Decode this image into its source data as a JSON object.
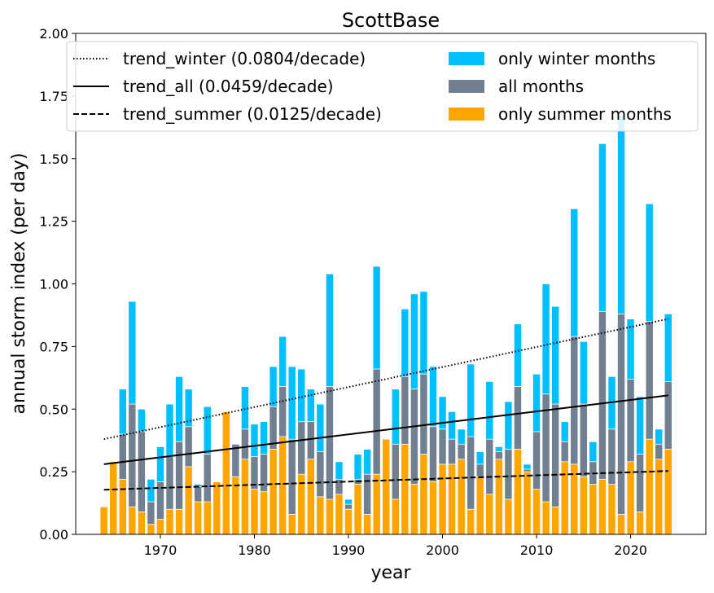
{
  "chart_data": {
    "type": "bar",
    "title": "ScottBase",
    "xlabel": "year",
    "ylabel": "annual storm index (per day)",
    "xlim": [
      1961,
      2028
    ],
    "ylim": [
      0,
      2.0
    ],
    "xticks": [
      "1970",
      "1980",
      "1990",
      "2000",
      "2010",
      "2020"
    ],
    "yticks": [
      "0.00",
      "0.25",
      "0.50",
      "0.75",
      "1.00",
      "1.25",
      "1.50",
      "1.75",
      "2.00"
    ],
    "grid": false,
    "legend_position": "top",
    "colors": {
      "winter": "#00BFFF",
      "all": "#708090",
      "summer": "#FFA500"
    },
    "series": [
      {
        "name": "only winter months",
        "color": "#00BFFF",
        "x": [
          1964,
          1965,
          1966,
          1967,
          1968,
          1969,
          1970,
          1971,
          1972,
          1973,
          1974,
          1975,
          1976,
          1977,
          1978,
          1979,
          1980,
          1981,
          1982,
          1983,
          1984,
          1985,
          1986,
          1987,
          1988,
          1989,
          1990,
          1991,
          1992,
          1993,
          1994,
          1995,
          1996,
          1997,
          1998,
          1999,
          2000,
          2001,
          2002,
          2003,
          2004,
          2005,
          2006,
          2007,
          2008,
          2009,
          2010,
          2011,
          2012,
          2013,
          2014,
          2015,
          2016,
          2017,
          2018,
          2019,
          2020,
          2021,
          2022,
          2023,
          2024
        ],
        "values": [
          0.0,
          0.2,
          0.58,
          0.93,
          0.5,
          0.22,
          0.35,
          0.52,
          0.63,
          0.58,
          0.2,
          0.51,
          0.18,
          0.28,
          0.35,
          0.59,
          0.44,
          0.45,
          0.67,
          0.79,
          0.67,
          0.66,
          0.58,
          0.52,
          1.04,
          0.29,
          0.14,
          0.32,
          0.34,
          1.07,
          0.25,
          0.58,
          0.9,
          0.96,
          0.97,
          0.67,
          0.55,
          0.49,
          0.42,
          0.68,
          0.33,
          0.61,
          0.35,
          0.53,
          0.84,
          0.28,
          0.64,
          1.0,
          0.91,
          0.45,
          1.3,
          0.77,
          0.37,
          1.56,
          0.63,
          1.67,
          0.86,
          0.55,
          1.32,
          0.42,
          0.88
        ]
      },
      {
        "name": "all months",
        "color": "#708090",
        "x": [
          1964,
          1965,
          1966,
          1967,
          1968,
          1969,
          1970,
          1971,
          1972,
          1973,
          1974,
          1975,
          1976,
          1977,
          1978,
          1979,
          1980,
          1981,
          1982,
          1983,
          1984,
          1985,
          1986,
          1987,
          1988,
          1989,
          1990,
          1991,
          1992,
          1993,
          1994,
          1995,
          1996,
          1997,
          1998,
          1999,
          2000,
          2001,
          2002,
          2003,
          2004,
          2005,
          2006,
          2007,
          2008,
          2009,
          2010,
          2011,
          2012,
          2013,
          2014,
          2015,
          2016,
          2017,
          2018,
          2019,
          2020,
          2021,
          2022,
          2023,
          2024
        ],
        "values": [
          0.0,
          0.24,
          0.4,
          0.52,
          0.41,
          0.13,
          0.21,
          0.31,
          0.37,
          0.43,
          0.19,
          0.32,
          0.2,
          0.38,
          0.36,
          0.42,
          0.31,
          0.32,
          0.51,
          0.59,
          0.38,
          0.45,
          0.45,
          0.33,
          0.59,
          0.22,
          0.12,
          0.22,
          0.24,
          0.66,
          0.31,
          0.36,
          0.63,
          0.58,
          0.64,
          0.43,
          0.42,
          0.38,
          0.36,
          0.39,
          0.28,
          0.38,
          0.33,
          0.34,
          0.59,
          0.26,
          0.41,
          0.56,
          0.52,
          0.37,
          0.79,
          0.52,
          0.29,
          0.89,
          0.42,
          0.88,
          0.62,
          0.32,
          0.85,
          0.36,
          0.61
        ]
      },
      {
        "name": "only summer months",
        "color": "#FFA500",
        "x": [
          1964,
          1965,
          1966,
          1967,
          1968,
          1969,
          1970,
          1971,
          1972,
          1973,
          1974,
          1975,
          1976,
          1977,
          1978,
          1979,
          1980,
          1981,
          1982,
          1983,
          1984,
          1985,
          1986,
          1987,
          1988,
          1989,
          1990,
          1991,
          1992,
          1993,
          1994,
          1995,
          1996,
          1997,
          1998,
          1999,
          2000,
          2001,
          2002,
          2003,
          2004,
          2005,
          2006,
          2007,
          2008,
          2009,
          2010,
          2011,
          2012,
          2013,
          2014,
          2015,
          2016,
          2017,
          2018,
          2019,
          2020,
          2021,
          2022,
          2023,
          2024
        ],
        "values": [
          0.11,
          0.29,
          0.22,
          0.11,
          0.09,
          0.04,
          0.06,
          0.1,
          0.1,
          0.27,
          0.13,
          0.13,
          0.21,
          0.49,
          0.23,
          0.3,
          0.18,
          0.17,
          0.34,
          0.39,
          0.08,
          0.24,
          0.3,
          0.15,
          0.14,
          0.16,
          0.1,
          0.2,
          0.08,
          0.24,
          0.38,
          0.14,
          0.36,
          0.2,
          0.32,
          0.21,
          0.28,
          0.28,
          0.3,
          0.1,
          0.23,
          0.16,
          0.3,
          0.14,
          0.34,
          0.25,
          0.18,
          0.13,
          0.11,
          0.29,
          0.28,
          0.23,
          0.2,
          0.22,
          0.2,
          0.08,
          0.29,
          0.09,
          0.38,
          0.3,
          0.34
        ]
      }
    ],
    "trend_lines": [
      {
        "name": "trend_winter (0.0804/decade)",
        "style": "dotted",
        "x": [
          1964,
          2024
        ],
        "y": [
          0.38,
          0.86
        ]
      },
      {
        "name": "trend_all (0.0459/decade)",
        "style": "solid",
        "x": [
          1964,
          2024
        ],
        "y": [
          0.28,
          0.555
        ]
      },
      {
        "name": "trend_summer (0.0125/decade)",
        "style": "dashed",
        "x": [
          1964,
          2024
        ],
        "y": [
          0.178,
          0.253
        ]
      }
    ],
    "legend": {
      "col1": [
        "trend_winter (0.0804/decade)",
        "trend_all (0.0459/decade)",
        "trend_summer (0.0125/decade)"
      ],
      "col2": [
        "only winter months",
        "all months",
        "only summer months"
      ]
    }
  }
}
